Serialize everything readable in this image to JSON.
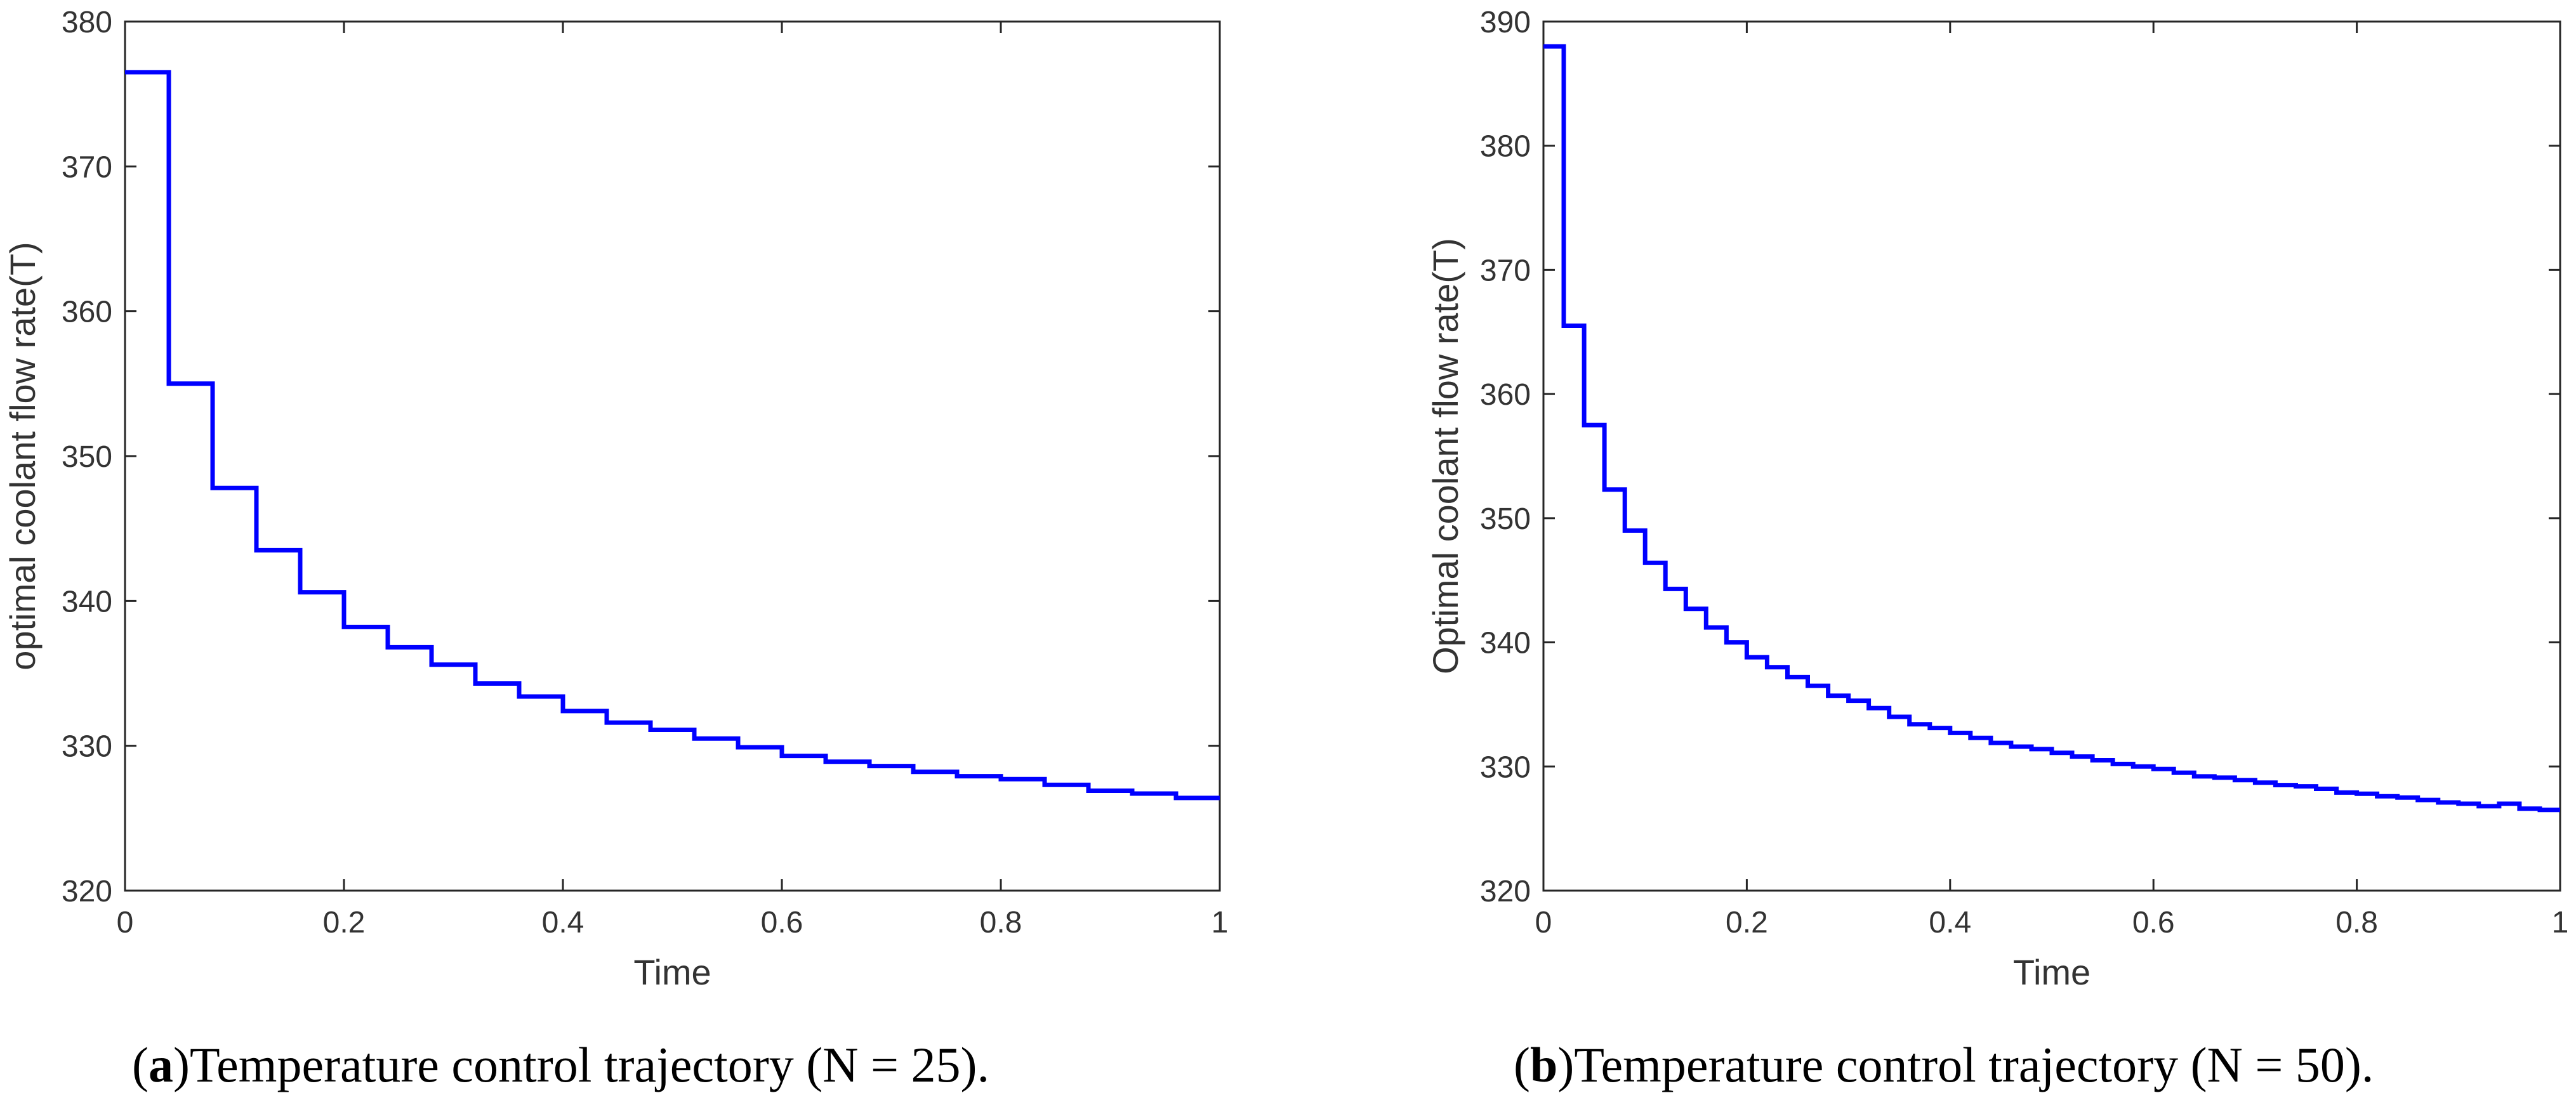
{
  "chart_data": [
    {
      "type": "line",
      "step": true,
      "title": "",
      "xlabel": "Time",
      "ylabel": "optimal coolant flow rate(T)",
      "xlim": [
        0,
        1
      ],
      "ylim": [
        320,
        380
      ],
      "xticks": [
        0,
        0.2,
        0.4,
        0.6,
        0.8,
        1
      ],
      "xtick_labels": [
        "0",
        "0.2",
        "0.4",
        "0.6",
        "0.8",
        "1"
      ],
      "yticks": [
        320,
        330,
        340,
        350,
        360,
        370,
        380
      ],
      "ytick_labels": [
        "320",
        "330",
        "340",
        "350",
        "360",
        "370",
        "380"
      ],
      "grid": false,
      "line_color": "#0000ff",
      "caption": {
        "open": "(",
        "letter": "a",
        "text": ")Temperature control trajectory (N = 25)."
      },
      "series": [
        {
          "x": [
            0,
            0.04,
            0.08,
            0.12,
            0.16,
            0.2,
            0.24,
            0.28,
            0.32,
            0.36,
            0.4,
            0.44,
            0.48,
            0.52,
            0.56,
            0.6,
            0.64,
            0.68,
            0.72,
            0.76,
            0.8,
            0.84,
            0.88,
            0.92,
            0.96
          ],
          "values": [
            376.5,
            355.0,
            347.8,
            343.5,
            340.6,
            338.2,
            336.8,
            335.6,
            334.3,
            333.4,
            332.4,
            331.6,
            331.1,
            330.5,
            329.9,
            329.3,
            328.9,
            328.6,
            328.2,
            327.9,
            327.7,
            327.3,
            326.9,
            326.7,
            326.4
          ]
        }
      ]
    },
    {
      "type": "line",
      "step": true,
      "title": "",
      "xlabel": "Time",
      "ylabel": "Optimal coolant flow rate(T)",
      "xlim": [
        0,
        1
      ],
      "ylim": [
        320,
        390
      ],
      "xticks": [
        0,
        0.2,
        0.4,
        0.6,
        0.8,
        1
      ],
      "xtick_labels": [
        "0",
        "0.2",
        "0.4",
        "0.6",
        "0.8",
        "1"
      ],
      "yticks": [
        320,
        330,
        340,
        350,
        360,
        370,
        380,
        390
      ],
      "ytick_labels": [
        "320",
        "330",
        "340",
        "350",
        "360",
        "370",
        "380",
        "390"
      ],
      "grid": false,
      "line_color": "#0000ff",
      "caption": {
        "open": "(",
        "letter": "b",
        "text": ")Temperature control trajectory (N = 50)."
      },
      "series": [
        {
          "x": [
            0,
            0.02,
            0.04,
            0.06,
            0.08,
            0.1,
            0.12,
            0.14,
            0.16,
            0.18,
            0.2,
            0.22,
            0.24,
            0.26,
            0.28,
            0.3,
            0.32,
            0.34,
            0.36,
            0.38,
            0.4,
            0.42,
            0.44,
            0.46,
            0.48,
            0.5,
            0.52,
            0.54,
            0.56,
            0.58,
            0.6,
            0.62,
            0.64,
            0.66,
            0.68,
            0.7,
            0.72,
            0.74,
            0.76,
            0.78,
            0.8,
            0.82,
            0.84,
            0.86,
            0.88,
            0.9,
            0.92,
            0.94,
            0.96,
            0.98
          ],
          "values": [
            388.0,
            365.5,
            357.5,
            352.3,
            349.0,
            346.4,
            344.3,
            342.7,
            341.2,
            340.0,
            338.8,
            338.0,
            337.2,
            336.5,
            335.7,
            335.3,
            334.7,
            334.0,
            333.4,
            333.1,
            332.7,
            332.3,
            331.9,
            331.6,
            331.4,
            331.1,
            330.8,
            330.5,
            330.2,
            330.0,
            329.8,
            329.5,
            329.2,
            329.1,
            328.9,
            328.7,
            328.5,
            328.4,
            328.2,
            327.9,
            327.8,
            327.6,
            327.5,
            327.3,
            327.1,
            327.0,
            326.8,
            327.0,
            326.6,
            326.5
          ]
        }
      ]
    }
  ]
}
